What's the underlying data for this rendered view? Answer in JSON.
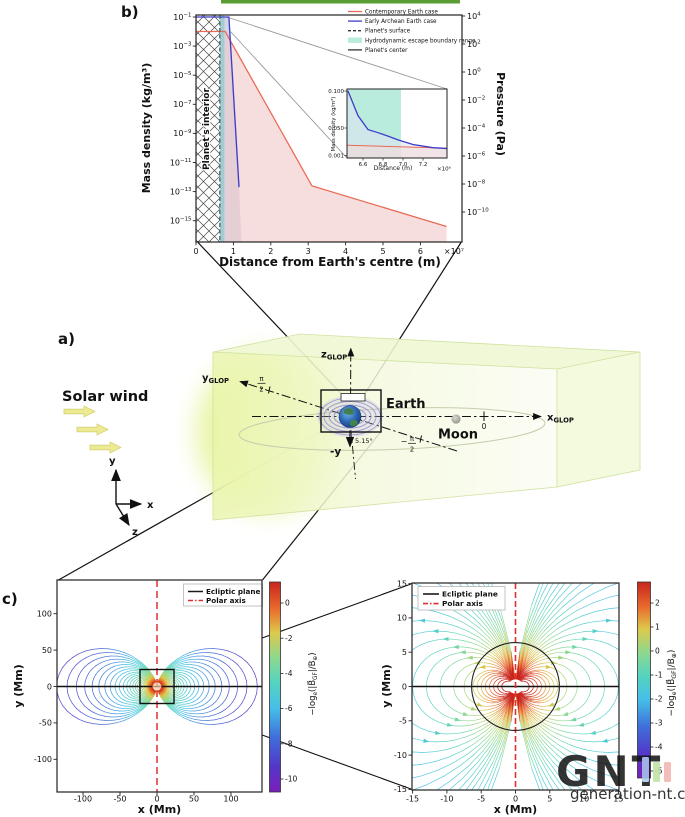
{
  "figure": {
    "top_bar_color": "#5a9e33",
    "watermark": {
      "logo": "GNT",
      "site": "generation-nt.com",
      "bar_colors": [
        "#a9c9ee",
        "#bfe3a0",
        "#f2b3ae"
      ]
    }
  },
  "panel_a": {
    "label": "a)",
    "solar_wind_label": "Solar wind",
    "earth_label": "Earth",
    "moon_label": "Moon",
    "x_glop": [
      "x",
      [
        "sub",
        "GLOP"
      ]
    ],
    "y_glop": [
      "y",
      [
        "sub",
        "GLOP"
      ]
    ],
    "z_glop": [
      "z",
      [
        "sub",
        "GLOP"
      ]
    ],
    "zero_label": "0",
    "pi": "π",
    "two": "2",
    "minus": "−",
    "tilt_angle": "5.15°",
    "minus_y": "-y",
    "triad": {
      "x": "x",
      "y": "y",
      "z": "z"
    }
  },
  "panel_b": {
    "label": "b)",
    "interior_label": "Planet's interior"
  },
  "panel_c": {
    "label": "c)"
  },
  "colormap": [
    [
      0,
      "#c9251d"
    ],
    [
      0.13,
      "#e96c2e"
    ],
    [
      0.24,
      "#ddc94b"
    ],
    [
      0.36,
      "#8ed88e"
    ],
    [
      0.48,
      "#55d3c0"
    ],
    [
      0.6,
      "#45bfe8"
    ],
    [
      0.74,
      "#3f6ed9"
    ],
    [
      0.88,
      "#5436c9"
    ],
    [
      1,
      "#7c1fb8"
    ]
  ],
  "chart_data": [
    {
      "panel": "b",
      "type": "line",
      "y_log": true,
      "xlabel": "Distance from Earth's centre (m)",
      "x_multiplier": "×10⁷",
      "x_ticks": [
        0,
        1,
        2,
        3,
        4,
        5,
        6
      ],
      "x_range_m": [
        0,
        71000000.0
      ],
      "ylabel_left": "Mass density (kg/m³)",
      "y_left_exponents": [
        -1,
        -3,
        -5,
        -7,
        -9,
        -11,
        -13,
        -15
      ],
      "ylabel_right": "Pressure (Pa)",
      "y_right_exponents": [
        4,
        2,
        0,
        -2,
        -4,
        -6,
        -8,
        -10
      ],
      "planet_surface_m": 6371000.0,
      "escape_band_m": [
        6400000.0,
        7000000.0
      ],
      "series": [
        {
          "name": "Contemporary Earth case",
          "color": "#e96a55",
          "x_m": [
            0,
            7800000.0,
            31000000.0,
            67000000.0
          ],
          "rho_kg_m3": [
            0.01,
            0.01,
            2.5e-13,
            4e-16
          ]
        },
        {
          "name": "Early Archean Earth case",
          "color": "#3d3dcb",
          "x_m": [
            0,
            8800000.0,
            11500000.0
          ],
          "rho_kg_m3": [
            0.1,
            0.1,
            2e-13
          ]
        }
      ],
      "legend": [
        {
          "label": "Contemporary Earth case",
          "color": "#e96a55",
          "style": "line"
        },
        {
          "label": "Early Archean Earth case",
          "color": "#3d3dcb",
          "style": "line"
        },
        {
          "label": "Planet's surface",
          "color": "#333333",
          "style": "dashed"
        },
        {
          "label": "Hydrodynamic escape boundary range",
          "color": "#b9ecdd",
          "style": "patch"
        },
        {
          "label": "Planet's center",
          "color": "#333333",
          "style": "line"
        }
      ],
      "inset": {
        "xlabel": "Distance (m)",
        "x_multiplier": "×10⁶",
        "x_ticks": [
          "6.6",
          "6.8",
          "7.0",
          "7.2"
        ],
        "ylabel": "Mass density (kg/m³)",
        "y_ticks": [
          "0.100",
          "0.050",
          "0.001"
        ],
        "escape_band_m": [
          6440000.0,
          6980000.0
        ],
        "series": [
          {
            "name": "Early Archean Earth case",
            "color": "#3d3dcb",
            "x_m": [
              6450000.0,
              6550000.0,
              6650000.0,
              6750000.0,
              6850000.0,
              6950000.0,
              7100000.0,
              7300000.0,
              7450000.0
            ],
            "rho_kg_m3": [
              0.105,
              0.063,
              0.04,
              0.026,
              0.016,
              0.0095,
              0.005,
              0.0032,
              0.0028
            ]
          },
          {
            "name": "Contemporary Earth case",
            "color": "#e96a55",
            "x_m": [
              6440000.0,
              7450000.0
            ],
            "rho_kg_m3": [
              0.0045,
              0.003
            ]
          }
        ]
      }
    },
    {
      "panel": "c-left",
      "type": "field_lines",
      "xlabel": "x (Mm)",
      "ylabel": "y (Mm)",
      "x_ticks": [
        -100,
        -50,
        0,
        50,
        100
      ],
      "y_ticks": [
        -100,
        -50,
        0,
        50,
        100
      ],
      "x_range_Mm": [
        -135,
        142
      ],
      "y_range_Mm": [
        -145,
        146
      ],
      "planet_radius_Mm": 6.4,
      "legend": [
        {
          "label": "Ecliptic plane",
          "color": "#1a1a1a",
          "style": "line"
        },
        {
          "label": "Polar axis",
          "color": "#e03131",
          "style": "dashdot"
        }
      ],
      "colorbar": {
        "ticks": [
          0,
          -2,
          -4,
          -6,
          -8,
          -10
        ],
        "label_parts": [
          "−log",
          [
            "sub",
            "e"
          ],
          "(|B⃗",
          [
            "sub",
            "GF"
          ],
          "|/B",
          [
            "sub",
            "⊕"
          ],
          ")"
        ]
      },
      "field_line_shells_Mm": [
        8,
        8.9,
        9.9,
        11.1,
        12.4,
        13.8,
        15.4,
        17.1,
        19.1,
        21.3,
        23.8,
        26.5,
        29.5,
        32.9,
        36.7,
        40.9,
        45.6,
        50.9,
        56.7,
        63.3,
        70.6,
        78.7,
        87.7,
        97.8,
        109,
        121.6,
        135.6
      ]
    },
    {
      "panel": "c-right",
      "type": "streamlines",
      "xlabel": "x (Mm)",
      "ylabel": "y (Mm)",
      "x_ticks": [
        -15,
        -10,
        -5,
        0,
        5,
        10,
        15
      ],
      "y_ticks": [
        -15,
        -10,
        -5,
        0,
        5,
        10,
        15
      ],
      "x_range_Mm": [
        -15.1,
        15.1
      ],
      "y_range_Mm": [
        -15.1,
        15.1
      ],
      "planet_radius_Mm": 6.4,
      "legend": [
        {
          "label": "Ecliptic plane",
          "color": "#1a1a1a",
          "style": "line"
        },
        {
          "label": "Polar axis",
          "color": "#e03131",
          "style": "dashdot"
        }
      ],
      "colorbar": {
        "ticks": [
          2,
          1,
          0,
          -1,
          -2,
          -3,
          -4,
          -5
        ],
        "label_parts": [
          "−log",
          [
            "sub",
            "e"
          ],
          "(|B⃗",
          [
            "sub",
            "GF"
          ],
          "|/B",
          [
            "sub",
            "⊕"
          ],
          ")"
        ]
      },
      "field_line_shells_Mm": [
        2,
        2.6,
        3.2,
        3.8,
        4.4,
        5,
        5.6,
        6.2,
        7.5,
        9,
        11,
        13,
        15,
        18,
        21,
        25,
        30,
        36,
        43,
        52,
        62,
        75,
        90,
        110,
        140,
        180,
        240,
        320
      ]
    }
  ]
}
